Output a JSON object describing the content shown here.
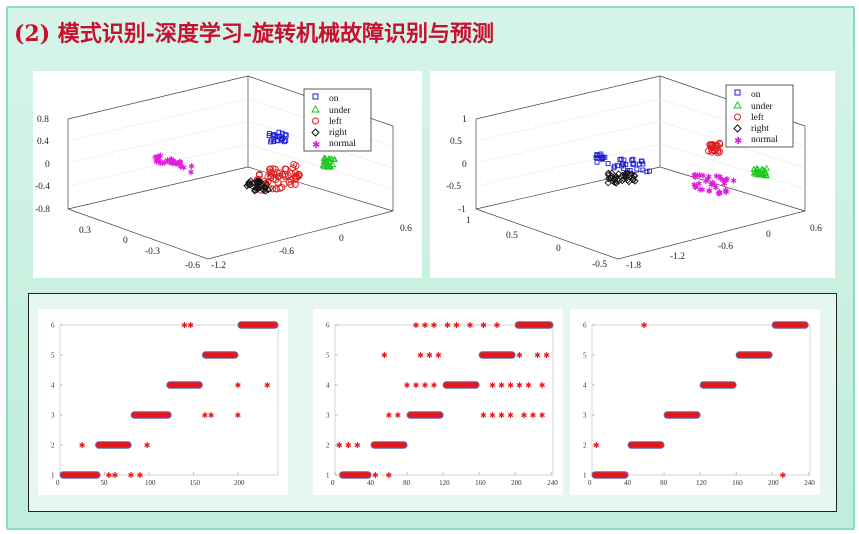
{
  "title": "(2) 模式识别-深度学习-旋转机械故障识别与预测",
  "legend": {
    "items": [
      {
        "label": "on",
        "marker": "square",
        "color": "#1f1fd6"
      },
      {
        "label": "under",
        "marker": "triangle",
        "color": "#1cc81c"
      },
      {
        "label": "left",
        "marker": "circle",
        "color": "#e01c1c"
      },
      {
        "label": "right",
        "marker": "diamond",
        "color": "#111111"
      },
      {
        "label": "normal",
        "marker": "star",
        "color": "#e01ce0"
      }
    ]
  },
  "chart_data": [
    {
      "type": "scatter",
      "name": "3d-left",
      "z_ticks": [
        "0.8",
        "0.4",
        "0",
        "-0.4",
        "-0.8"
      ],
      "x_ticks": [
        "0.3",
        "0",
        "-0.3",
        "-0.6"
      ],
      "y_ticks": [
        "-1.2",
        "-0.6",
        "0",
        "0.6"
      ],
      "legend_position": "top-right"
    },
    {
      "type": "scatter",
      "name": "3d-right",
      "z_ticks": [
        "1",
        "0.5",
        "0",
        "-0.5",
        "-1"
      ],
      "x_ticks": [
        "1",
        "0.5",
        "0",
        "-0.5"
      ],
      "y_ticks": [
        "-1.8",
        "-1.2",
        "-0.6",
        "0",
        "0.6"
      ],
      "legend_position": "top-right"
    },
    {
      "type": "scatter",
      "name": "pred-1",
      "x_ticks": [
        "0",
        "50",
        "100",
        "150",
        "200"
      ],
      "y_ticks": [
        "1",
        "2",
        "3",
        "4",
        "5",
        "6"
      ],
      "xlim": [
        0,
        245
      ],
      "ylim": [
        1,
        6
      ],
      "segments": [
        [
          0,
          45,
          1
        ],
        [
          40,
          80,
          2
        ],
        [
          80,
          125,
          3
        ],
        [
          120,
          160,
          4
        ],
        [
          160,
          200,
          5
        ],
        [
          200,
          245,
          6
        ]
      ],
      "outliers": [
        [
          25,
          2
        ],
        [
          55,
          1
        ],
        [
          62,
          1
        ],
        [
          80,
          1
        ],
        [
          90,
          1
        ],
        [
          98,
          2
        ],
        [
          140,
          6
        ],
        [
          147,
          6
        ],
        [
          163,
          3
        ],
        [
          170,
          3
        ],
        [
          200,
          3
        ],
        [
          200,
          4
        ],
        [
          233,
          4
        ],
        [
          110,
          3
        ]
      ]
    },
    {
      "type": "scatter",
      "name": "pred-2",
      "x_ticks": [
        "0",
        "40",
        "80",
        "120",
        "160",
        "200",
        "240"
      ],
      "y_ticks": [
        "1",
        "2",
        "3",
        "4",
        "5",
        "6"
      ],
      "xlim": [
        0,
        242
      ],
      "ylim": [
        1,
        6
      ],
      "segments": [
        [
          5,
          40,
          1
        ],
        [
          40,
          80,
          2
        ],
        [
          80,
          120,
          3
        ],
        [
          120,
          160,
          4
        ],
        [
          160,
          200,
          5
        ],
        [
          200,
          242,
          6
        ]
      ],
      "outliers": [
        [
          5,
          2
        ],
        [
          15,
          2
        ],
        [
          25,
          2
        ],
        [
          60,
          3
        ],
        [
          70,
          3
        ],
        [
          55,
          5
        ],
        [
          80,
          4
        ],
        [
          90,
          6
        ],
        [
          100,
          6
        ],
        [
          110,
          6
        ],
        [
          125,
          6
        ],
        [
          135,
          6
        ],
        [
          150,
          6
        ],
        [
          165,
          6
        ],
        [
          180,
          6
        ],
        [
          90,
          4
        ],
        [
          100,
          4
        ],
        [
          110,
          4
        ],
        [
          115,
          5
        ],
        [
          175,
          4
        ],
        [
          185,
          4
        ],
        [
          195,
          4
        ],
        [
          205,
          4
        ],
        [
          215,
          4
        ],
        [
          230,
          4
        ],
        [
          165,
          3
        ],
        [
          175,
          3
        ],
        [
          185,
          3
        ],
        [
          195,
          3
        ],
        [
          210,
          3
        ],
        [
          220,
          3
        ],
        [
          230,
          3
        ],
        [
          95,
          5
        ],
        [
          105,
          5
        ],
        [
          205,
          5
        ],
        [
          225,
          5
        ],
        [
          235,
          5
        ],
        [
          30,
          1
        ],
        [
          45,
          1
        ],
        [
          60,
          1
        ]
      ]
    },
    {
      "type": "scatter",
      "name": "pred-3",
      "x_ticks": [
        "0",
        "40",
        "80",
        "120",
        "160",
        "200",
        "240"
      ],
      "y_ticks": [
        "1",
        "2",
        "3",
        "4",
        "5",
        "6"
      ],
      "xlim": [
        0,
        242
      ],
      "ylim": [
        1,
        6
      ],
      "segments": [
        [
          0,
          40,
          1
        ],
        [
          40,
          80,
          2
        ],
        [
          80,
          120,
          3
        ],
        [
          120,
          160,
          4
        ],
        [
          160,
          200,
          5
        ],
        [
          200,
          240,
          6
        ]
      ],
      "outliers": [
        [
          5,
          2
        ],
        [
          58,
          6
        ],
        [
          212,
          1
        ]
      ]
    }
  ]
}
